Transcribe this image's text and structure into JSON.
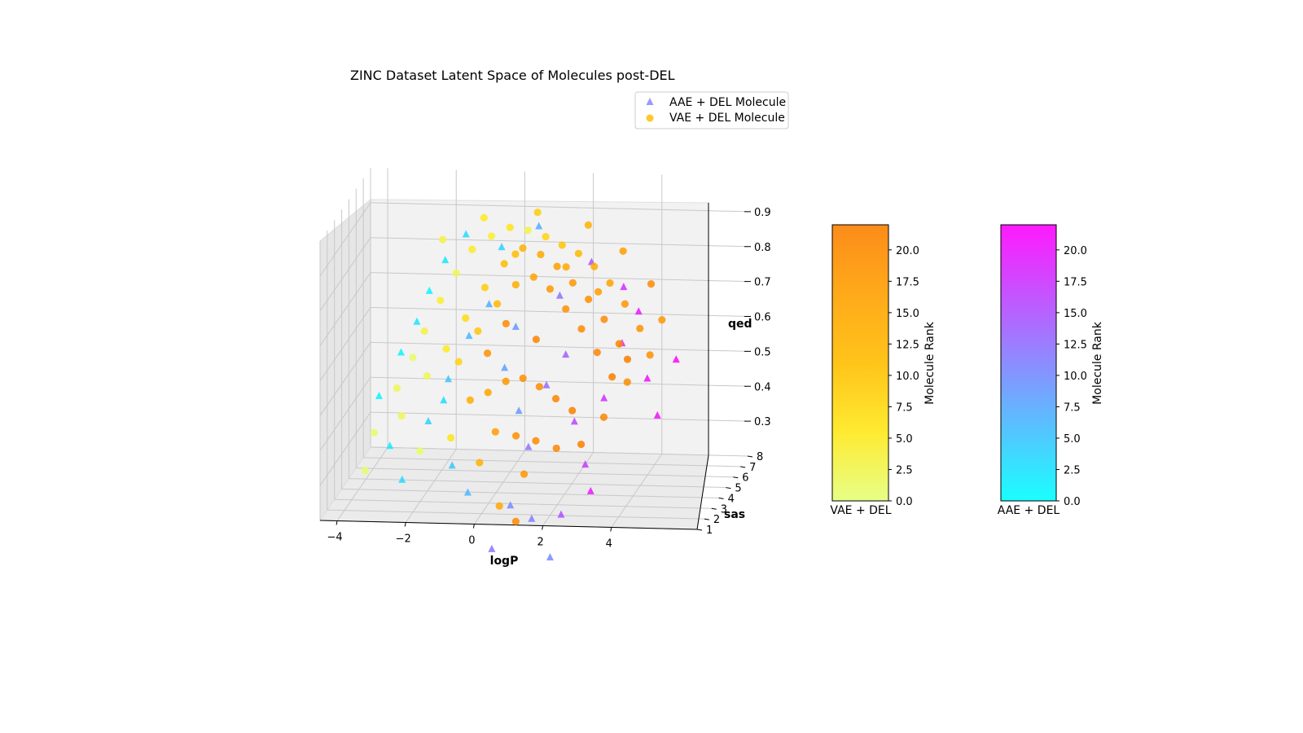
{
  "chart_data": {
    "type": "scatter",
    "title": "ZINC Dataset Latent Space of Molecules post-DEL",
    "xlabel": "logP",
    "ylabel": "sas",
    "zlabel": "qed",
    "x_ticks": [
      "−4",
      "−2",
      "0",
      "2",
      "4"
    ],
    "y_ticks": [
      "1",
      "2",
      "3",
      "4",
      "5",
      "6",
      "7",
      "8"
    ],
    "z_ticks": [
      "0.3",
      "0.4",
      "0.5",
      "0.6",
      "0.7",
      "0.8",
      "0.9"
    ],
    "xlim": [
      -4.5,
      6.5
    ],
    "ylim": [
      1,
      8
    ],
    "zlim": [
      0.2,
      1.0
    ],
    "legend": {
      "placement": "top-right",
      "entries": [
        "AAE + DEL Molecule",
        "VAE + DEL Molecule"
      ]
    },
    "series": [
      {
        "name": "AAE + DEL Molecule",
        "marker": "triangle",
        "colormap": "cool",
        "points": [
          {
            "x": -3.2,
            "y": 3.0,
            "z": 0.5,
            "rank": 1
          },
          {
            "x": -2.6,
            "y": 3.2,
            "z": 0.62,
            "rank": 1
          },
          {
            "x": -2.2,
            "y": 3.5,
            "z": 0.7,
            "rank": 2
          },
          {
            "x": -1.9,
            "y": 3.8,
            "z": 0.78,
            "rank": 1
          },
          {
            "x": -1.5,
            "y": 4.1,
            "z": 0.86,
            "rank": 2
          },
          {
            "x": -1.0,
            "y": 4.6,
            "z": 0.92,
            "rank": 3
          },
          {
            "x": -2.8,
            "y": 2.6,
            "z": 0.37,
            "rank": 2
          },
          {
            "x": -2.4,
            "y": 2.4,
            "z": 0.28,
            "rank": 3
          },
          {
            "x": -1.7,
            "y": 2.7,
            "z": 0.44,
            "rank": 4
          },
          {
            "x": -1.2,
            "y": 3.1,
            "z": 0.55,
            "rank": 5
          },
          {
            "x": -0.7,
            "y": 3.6,
            "z": 0.66,
            "rank": 6
          },
          {
            "x": -0.2,
            "y": 4.0,
            "z": 0.74,
            "rank": 7
          },
          {
            "x": 0.4,
            "y": 3.3,
            "z": 0.58,
            "rank": 8
          },
          {
            "x": 0.9,
            "y": 2.9,
            "z": 0.47,
            "rank": 9
          },
          {
            "x": -0.9,
            "y": 2.2,
            "z": 0.33,
            "rank": 5
          },
          {
            "x": -0.4,
            "y": 2.0,
            "z": 0.26,
            "rank": 6
          },
          {
            "x": 0.8,
            "y": 2.2,
            "z": 0.22,
            "rank": 10
          },
          {
            "x": 1.2,
            "y": 2.8,
            "z": 0.37,
            "rank": 12
          },
          {
            "x": 1.6,
            "y": 3.4,
            "z": 0.53,
            "rank": 13
          },
          {
            "x": 2.1,
            "y": 3.7,
            "z": 0.61,
            "rank": 14
          },
          {
            "x": 2.5,
            "y": 3.0,
            "z": 0.44,
            "rank": 16
          },
          {
            "x": 2.9,
            "y": 2.6,
            "z": 0.33,
            "rank": 17
          },
          {
            "x": 3.3,
            "y": 3.3,
            "z": 0.5,
            "rank": 18
          },
          {
            "x": 3.7,
            "y": 3.9,
            "z": 0.64,
            "rank": 19
          },
          {
            "x": 4.1,
            "y": 4.3,
            "z": 0.72,
            "rank": 20
          },
          {
            "x": 4.5,
            "y": 3.6,
            "z": 0.55,
            "rank": 21
          },
          {
            "x": 4.9,
            "y": 3.1,
            "z": 0.46,
            "rank": 21
          },
          {
            "x": 5.3,
            "y": 3.8,
            "z": 0.6,
            "rank": 22
          },
          {
            "x": 3.1,
            "y": 2.4,
            "z": 0.26,
            "rank": 20
          },
          {
            "x": 2.3,
            "y": 2.1,
            "z": 0.2,
            "rank": 15
          },
          {
            "x": 1.4,
            "y": 2.3,
            "z": 0.18,
            "rank": 11
          },
          {
            "x": 0.3,
            "y": 2.0,
            "z": 0.1,
            "rank": 12
          },
          {
            "x": 2.0,
            "y": 2.0,
            "z": 0.08,
            "rank": 10
          },
          {
            "x": 0.0,
            "y": 4.8,
            "z": 0.88,
            "rank": 4
          },
          {
            "x": 1.0,
            "y": 5.2,
            "z": 0.93,
            "rank": 7
          },
          {
            "x": 2.6,
            "y": 4.9,
            "z": 0.84,
            "rank": 15
          },
          {
            "x": 3.6,
            "y": 4.6,
            "z": 0.78,
            "rank": 18
          },
          {
            "x": -1.4,
            "y": 3.4,
            "z": 0.48,
            "rank": 3
          },
          {
            "x": 0.6,
            "y": 3.9,
            "z": 0.68,
            "rank": 9
          },
          {
            "x": 1.8,
            "y": 4.3,
            "z": 0.76,
            "rank": 12
          }
        ]
      },
      {
        "name": "VAE + DEL Molecule",
        "marker": "circle",
        "colormap": "Wistia",
        "points": [
          {
            "x": -3.3,
            "y": 2.8,
            "z": 0.4,
            "rank": 1
          },
          {
            "x": -2.7,
            "y": 3.1,
            "z": 0.52,
            "rank": 2
          },
          {
            "x": -2.3,
            "y": 3.4,
            "z": 0.6,
            "rank": 1
          },
          {
            "x": -2.0,
            "y": 3.6,
            "z": 0.67,
            "rank": 3
          },
          {
            "x": -1.6,
            "y": 3.9,
            "z": 0.75,
            "rank": 4
          },
          {
            "x": -1.2,
            "y": 4.2,
            "z": 0.82,
            "rank": 2
          },
          {
            "x": -0.8,
            "y": 4.5,
            "z": 0.88,
            "rank": 5
          },
          {
            "x": -0.3,
            "y": 4.8,
            "z": 0.91,
            "rank": 4
          },
          {
            "x": 0.2,
            "y": 5.0,
            "z": 0.93,
            "rank": 6
          },
          {
            "x": 0.7,
            "y": 5.1,
            "z": 0.92,
            "rank": 3
          },
          {
            "x": 1.2,
            "y": 5.2,
            "z": 0.9,
            "rank": 8
          },
          {
            "x": 1.7,
            "y": 5.1,
            "z": 0.88,
            "rank": 10
          },
          {
            "x": 2.2,
            "y": 5.0,
            "z": 0.86,
            "rank": 12
          },
          {
            "x": 2.7,
            "y": 4.8,
            "z": 0.83,
            "rank": 14
          },
          {
            "x": 3.2,
            "y": 4.6,
            "z": 0.79,
            "rank": 16
          },
          {
            "x": 3.7,
            "y": 4.3,
            "z": 0.74,
            "rank": 18
          },
          {
            "x": 4.2,
            "y": 4.0,
            "z": 0.68,
            "rank": 19
          },
          {
            "x": -1.8,
            "y": 3.0,
            "z": 0.56,
            "rank": 2
          },
          {
            "x": -1.3,
            "y": 3.3,
            "z": 0.63,
            "rank": 5
          },
          {
            "x": -0.8,
            "y": 3.6,
            "z": 0.71,
            "rank": 7
          },
          {
            "x": -0.3,
            "y": 3.9,
            "z": 0.79,
            "rank": 9
          },
          {
            "x": 0.2,
            "y": 4.2,
            "z": 0.85,
            "rank": 11
          },
          {
            "x": 0.7,
            "y": 4.4,
            "z": 0.89,
            "rank": 13
          },
          {
            "x": 1.2,
            "y": 4.5,
            "z": 0.87,
            "rank": 15
          },
          {
            "x": 1.7,
            "y": 4.4,
            "z": 0.84,
            "rank": 17
          },
          {
            "x": 2.2,
            "y": 4.2,
            "z": 0.8,
            "rank": 18
          },
          {
            "x": 2.7,
            "y": 4.0,
            "z": 0.76,
            "rank": 19
          },
          {
            "x": 3.2,
            "y": 3.8,
            "z": 0.71,
            "rank": 20
          },
          {
            "x": 3.7,
            "y": 3.5,
            "z": 0.65,
            "rank": 21
          },
          {
            "x": -0.9,
            "y": 3.1,
            "z": 0.6,
            "rank": 8
          },
          {
            "x": -0.4,
            "y": 3.4,
            "z": 0.68,
            "rank": 10
          },
          {
            "x": 0.1,
            "y": 3.7,
            "z": 0.75,
            "rank": 12
          },
          {
            "x": 0.6,
            "y": 3.9,
            "z": 0.8,
            "rank": 14
          },
          {
            "x": 1.1,
            "y": 4.0,
            "z": 0.82,
            "rank": 16
          },
          {
            "x": 1.6,
            "y": 3.9,
            "z": 0.79,
            "rank": 18
          },
          {
            "x": 2.1,
            "y": 3.7,
            "z": 0.74,
            "rank": 19
          },
          {
            "x": 2.6,
            "y": 3.5,
            "z": 0.69,
            "rank": 20
          },
          {
            "x": 3.1,
            "y": 3.3,
            "z": 0.63,
            "rank": 21
          },
          {
            "x": 3.6,
            "y": 3.0,
            "z": 0.57,
            "rank": 22
          },
          {
            "x": -0.5,
            "y": 2.8,
            "z": 0.5,
            "rank": 14
          },
          {
            "x": 0.0,
            "y": 2.9,
            "z": 0.52,
            "rank": 16
          },
          {
            "x": 0.5,
            "y": 3.0,
            "z": 0.55,
            "rank": 18
          },
          {
            "x": 1.0,
            "y": 3.0,
            "z": 0.56,
            "rank": 19
          },
          {
            "x": 1.5,
            "y": 2.9,
            "z": 0.54,
            "rank": 20
          },
          {
            "x": 2.0,
            "y": 2.8,
            "z": 0.51,
            "rank": 21
          },
          {
            "x": 2.5,
            "y": 2.7,
            "z": 0.48,
            "rank": 22
          },
          {
            "x": 0.3,
            "y": 2.5,
            "z": 0.42,
            "rank": 17
          },
          {
            "x": 0.9,
            "y": 2.5,
            "z": 0.41,
            "rank": 19
          },
          {
            "x": 1.5,
            "y": 2.4,
            "z": 0.4,
            "rank": 20
          },
          {
            "x": 2.1,
            "y": 2.4,
            "z": 0.38,
            "rank": 21
          },
          {
            "x": -0.1,
            "y": 2.2,
            "z": 0.34,
            "rank": 13
          },
          {
            "x": 1.2,
            "y": 2.2,
            "z": 0.31,
            "rank": 18
          },
          {
            "x": 2.8,
            "y": 2.5,
            "z": 0.39,
            "rank": 22
          },
          {
            "x": 3.4,
            "y": 2.8,
            "z": 0.46,
            "rank": 21
          },
          {
            "x": 4.0,
            "y": 3.2,
            "z": 0.55,
            "rank": 20
          },
          {
            "x": 4.6,
            "y": 3.5,
            "z": 0.62,
            "rank": 19
          },
          {
            "x": 4.8,
            "y": 4.2,
            "z": 0.7,
            "rank": 18
          },
          {
            "x": 1.0,
            "y": 2.0,
            "z": 0.18,
            "rank": 20
          },
          {
            "x": 0.5,
            "y": 2.1,
            "z": 0.22,
            "rank": 15
          },
          {
            "x": -1.9,
            "y": 2.5,
            "z": 0.36,
            "rank": 1
          },
          {
            "x": -2.5,
            "y": 2.8,
            "z": 0.45,
            "rank": 2
          },
          {
            "x": -3.5,
            "y": 2.5,
            "z": 0.3,
            "rank": 1
          },
          {
            "x": -1.0,
            "y": 2.5,
            "z": 0.4,
            "rank": 6
          },
          {
            "x": -0.6,
            "y": 5.2,
            "z": 0.95,
            "rank": 5
          },
          {
            "x": 0.9,
            "y": 5.5,
            "z": 0.96,
            "rank": 9
          },
          {
            "x": 2.4,
            "y": 5.4,
            "z": 0.93,
            "rank": 13
          },
          {
            "x": 3.5,
            "y": 5.0,
            "z": 0.87,
            "rank": 17
          },
          {
            "x": 4.4,
            "y": 4.6,
            "z": 0.79,
            "rank": 20
          },
          {
            "x": -1.7,
            "y": 4.7,
            "z": 0.9,
            "rank": 3
          },
          {
            "x": 0.4,
            "y": 4.8,
            "z": 0.86,
            "rank": 11
          },
          {
            "x": 1.9,
            "y": 4.7,
            "z": 0.83,
            "rank": 15
          },
          {
            "x": 2.9,
            "y": 4.4,
            "z": 0.77,
            "rank": 17
          },
          {
            "x": 3.9,
            "y": 3.7,
            "z": 0.6,
            "rank": 22
          },
          {
            "x": 1.3,
            "y": 3.4,
            "z": 0.66,
            "rank": 21
          },
          {
            "x": -0.1,
            "y": 3.3,
            "z": 0.62,
            "rank": 19
          },
          {
            "x": 0.4,
            "y": 3.5,
            "z": 0.7,
            "rank": 20
          }
        ]
      }
    ],
    "colorbars": [
      {
        "label": "Molecule Rank",
        "caption": "VAE + DEL",
        "colormap": "Wistia",
        "colors": [
          "#e4ff7a",
          "#ffe81a",
          "#ffbd00",
          "#ffa000",
          "#fc7f00"
        ],
        "range": [
          0,
          22
        ],
        "ticks": [
          "0.0",
          "2.5",
          "5.0",
          "7.5",
          "10.0",
          "12.5",
          "15.0",
          "17.5",
          "20.0"
        ]
      },
      {
        "label": "Molecule Rank",
        "caption": "AAE + DEL",
        "colormap": "cool",
        "colors": [
          "#00ffff",
          "#ff00ff"
        ],
        "range": [
          0,
          22
        ],
        "ticks": [
          "0.0",
          "2.5",
          "5.0",
          "7.5",
          "10.0",
          "12.5",
          "15.0",
          "17.5",
          "20.0"
        ]
      }
    ]
  }
}
